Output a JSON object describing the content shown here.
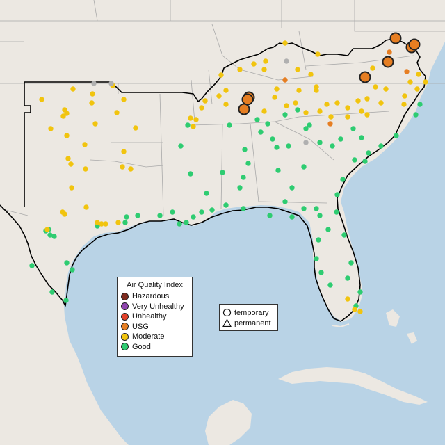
{
  "legend": {
    "title": "Air Quality Index",
    "categories": [
      {
        "label": "Hazardous",
        "color": "#7e2b1f"
      },
      {
        "label": "Very Unhealthy",
        "color": "#8e44ad"
      },
      {
        "label": "Unhealthy",
        "color": "#e2412a"
      },
      {
        "label": "USG",
        "color": "#e67e22"
      },
      {
        "label": "Moderate",
        "color": "#f1c40f"
      },
      {
        "label": "Good",
        "color": "#2ecc71"
      }
    ]
  },
  "monitor_legend": {
    "temporary_label": "temporary",
    "permanent_label": "permanent"
  },
  "colors": {
    "water": "#b9d3e6",
    "land": "#ece8e2",
    "border": "#000000",
    "no_data": "#b0b0b0"
  }
}
